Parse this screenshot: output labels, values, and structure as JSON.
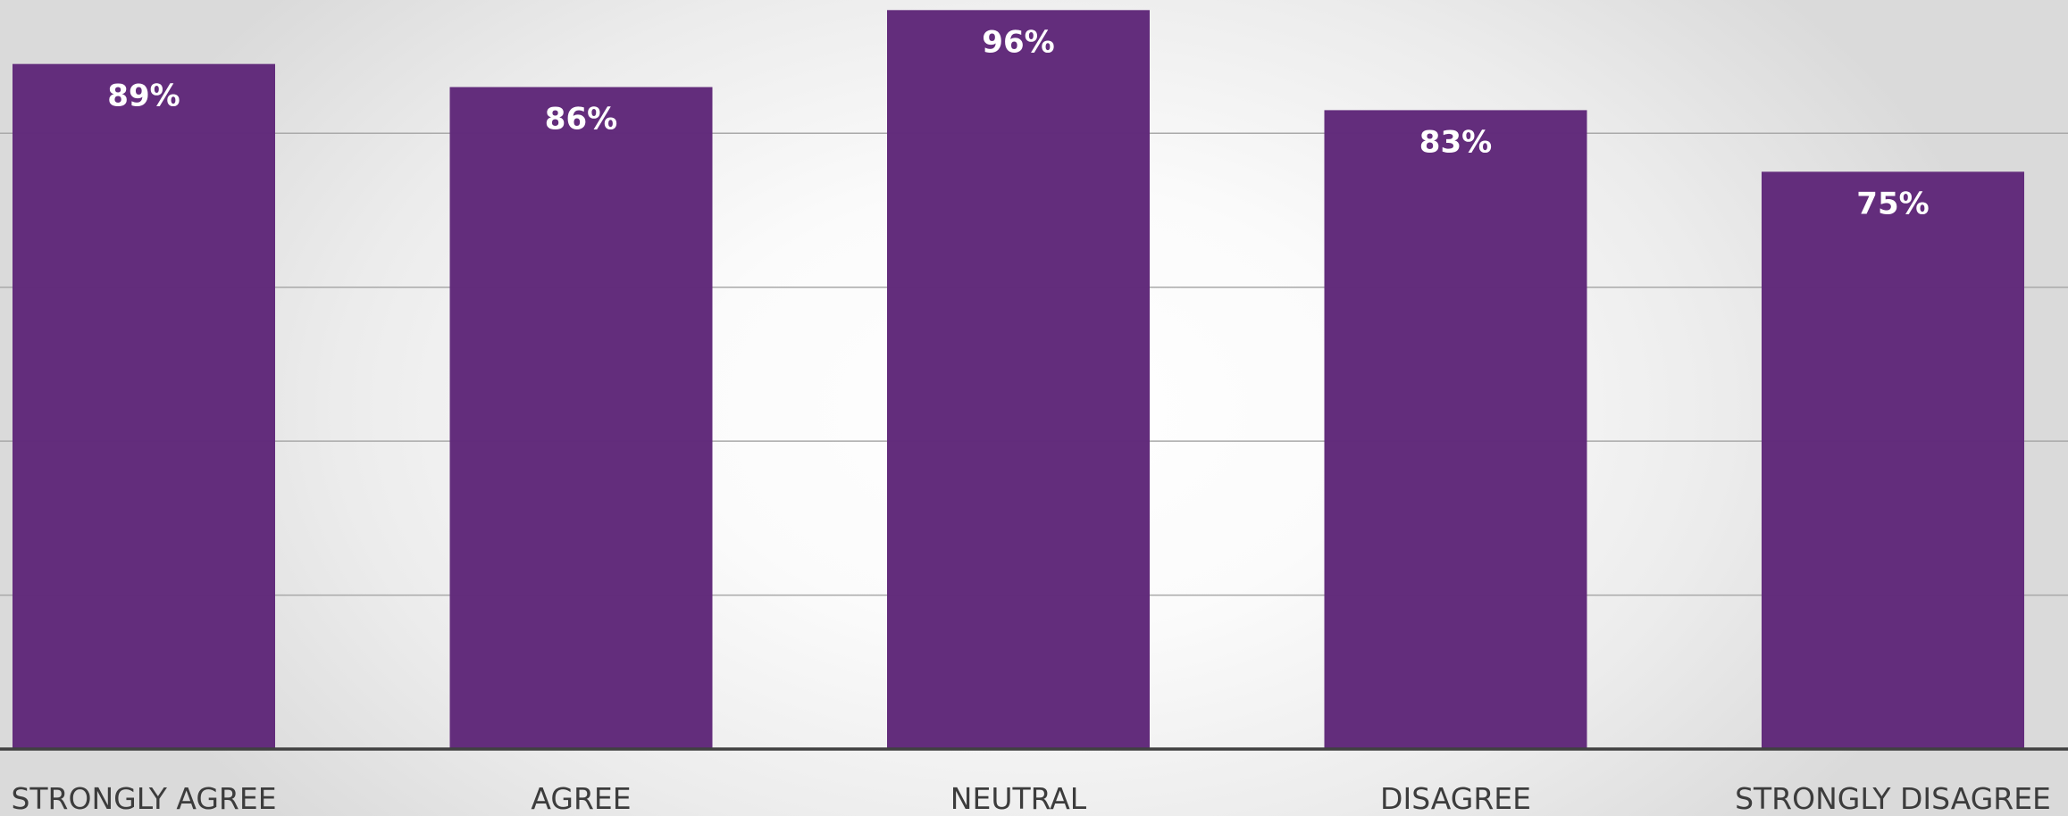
{
  "chart_data": {
    "type": "bar",
    "categories": [
      "STRONGLY AGREE",
      "AGREE",
      "NEUTRAL",
      "DISAGREE",
      "STRONGLY DISAGREE"
    ],
    "values": [
      89,
      86,
      96,
      83,
      75
    ],
    "data_labels": [
      "89%",
      "86%",
      "96%",
      "83%",
      "75%"
    ],
    "title": "",
    "xlabel": "",
    "ylabel": "",
    "ylim": [
      0,
      96.5
    ],
    "yticks": [
      20,
      40,
      60,
      80
    ],
    "grid": true,
    "legend": "none",
    "bar_color": "#612a7a",
    "label_color": "#ffffff",
    "tick_label_color": "#3c3c3c"
  }
}
